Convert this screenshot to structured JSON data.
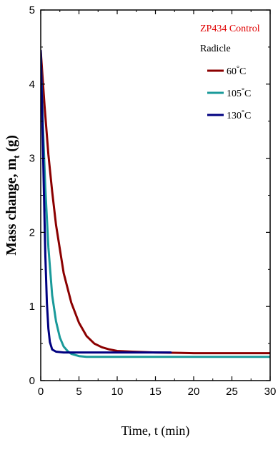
{
  "chart_data": {
    "type": "line",
    "xlabel": "Time, t (min)",
    "ylabel": "Mass change, m",
    "ylabel_sub": "t",
    "ylabel_unit": " (g)",
    "xlim": [
      0,
      30
    ],
    "ylim": [
      0,
      5
    ],
    "xticks": [
      0,
      5,
      10,
      15,
      20,
      25,
      30
    ],
    "yticks": [
      0,
      1,
      2,
      3,
      4,
      5
    ],
    "grid": false,
    "legend_position": "top-right",
    "legend_title": "ZP434 Control",
    "legend_subtitle": "Radicle",
    "series": [
      {
        "name": "60 °C",
        "name_value": "60",
        "name_unit": "°C",
        "color": "#8b0000",
        "x": [
          0,
          0.5,
          1,
          1.5,
          2,
          3,
          4,
          5,
          6,
          7,
          8,
          9,
          10,
          12,
          15,
          20,
          25,
          30
        ],
        "y": [
          4.45,
          3.7,
          3.05,
          2.55,
          2.1,
          1.45,
          1.05,
          0.78,
          0.6,
          0.5,
          0.45,
          0.42,
          0.4,
          0.39,
          0.38,
          0.37,
          0.37,
          0.37
        ]
      },
      {
        "name": "105 °C",
        "name_value": "105",
        "name_unit": "°C",
        "color": "#1a9a9a",
        "x": [
          0,
          0.3,
          0.6,
          1,
          1.5,
          2,
          2.5,
          3,
          3.5,
          4,
          5,
          6,
          8,
          10,
          15,
          20,
          25,
          30
        ],
        "y": [
          4.4,
          3.4,
          2.6,
          1.8,
          1.15,
          0.8,
          0.58,
          0.46,
          0.4,
          0.36,
          0.33,
          0.32,
          0.32,
          0.32,
          0.32,
          0.32,
          0.32,
          0.32
        ]
      },
      {
        "name": "130 °C",
        "name_value": "130",
        "name_unit": "°C",
        "color": "#000080",
        "x": [
          0,
          0.2,
          0.4,
          0.6,
          0.8,
          1,
          1.2,
          1.5,
          2,
          3,
          5,
          10,
          15,
          17
        ],
        "y": [
          4.45,
          3.6,
          2.6,
          1.7,
          1.05,
          0.7,
          0.52,
          0.42,
          0.39,
          0.38,
          0.38,
          0.38,
          0.38,
          0.38
        ]
      }
    ]
  }
}
